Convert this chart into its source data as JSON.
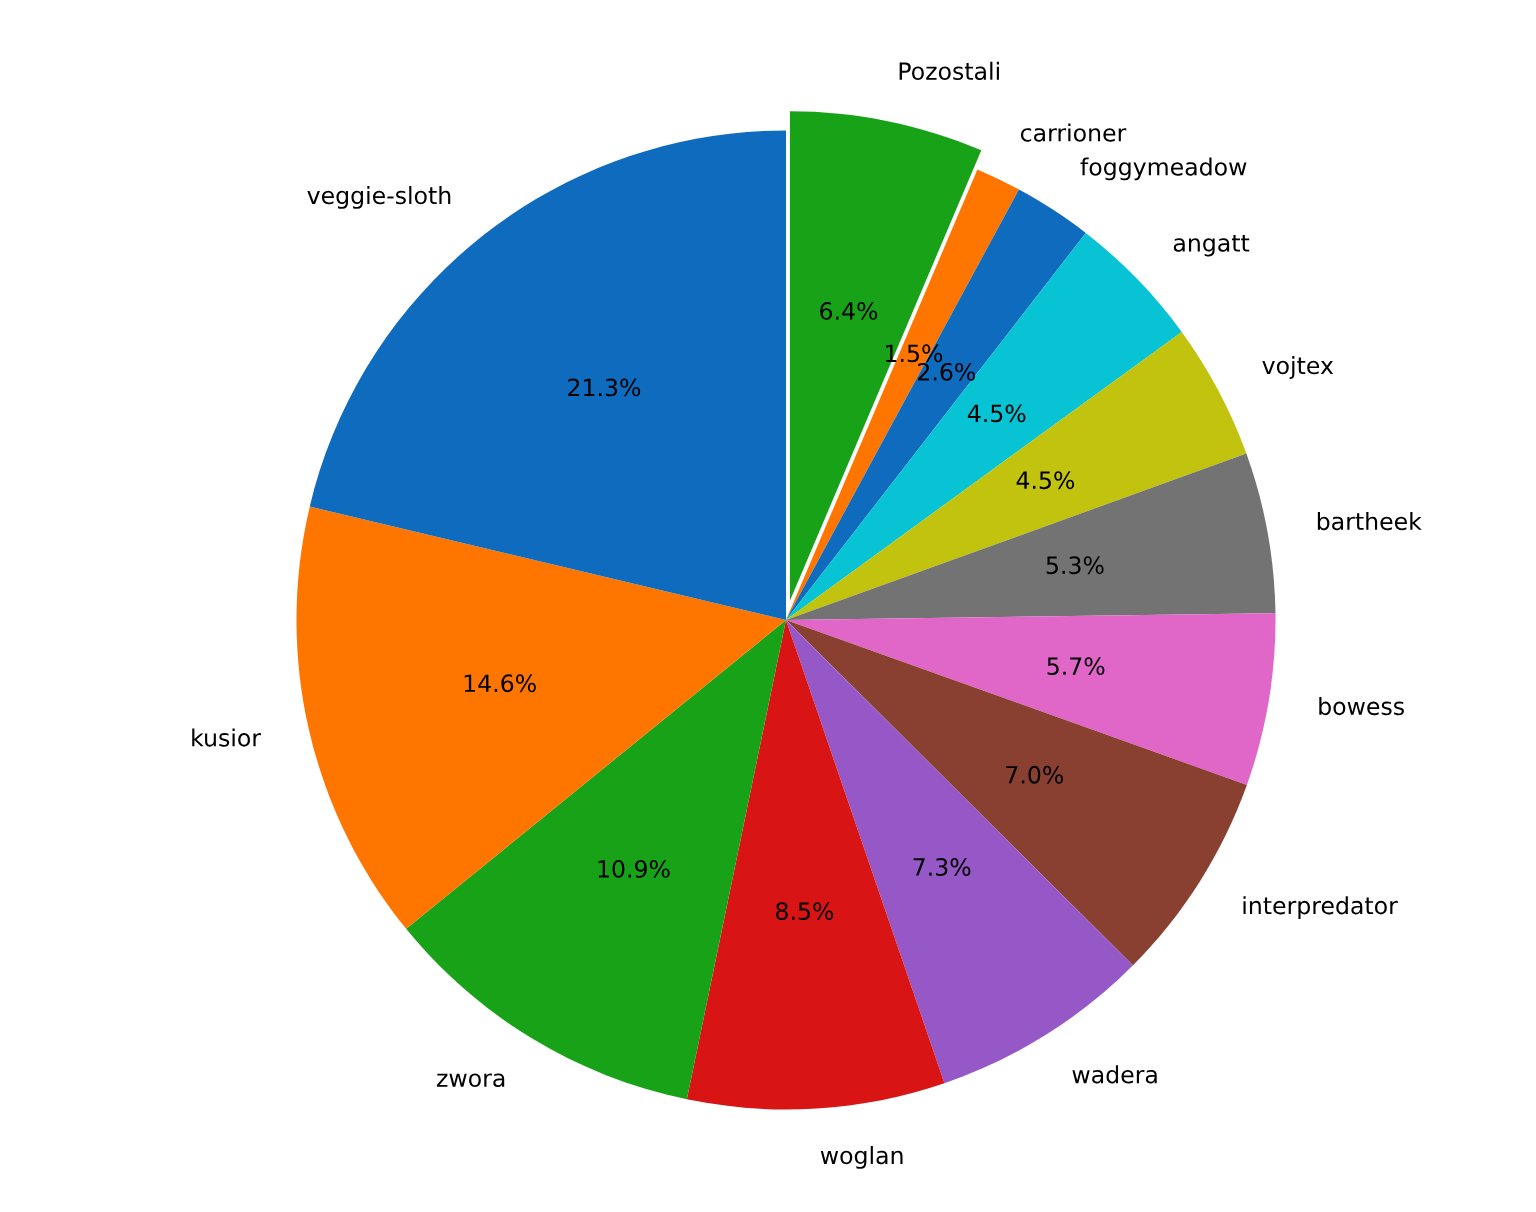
{
  "chart_data": {
    "type": "pie",
    "categories": [
      "Pozostali",
      "carrioner",
      "foggymeadow",
      "angatt",
      "vojtex",
      "bartheek",
      "bowess",
      "interpredator",
      "wadera",
      "woglan",
      "zwora",
      "kusior",
      "veggie-sloth"
    ],
    "values": [
      6.4,
      1.5,
      2.6,
      4.5,
      4.5,
      5.3,
      5.7,
      7.0,
      7.3,
      8.5,
      10.9,
      14.6,
      21.3
    ],
    "colors": [
      "#18a218",
      "#fe7600",
      "#0e6bbd",
      "#07c3d3",
      "#c2c30f",
      "#737373",
      "#e067c8",
      "#8a4030",
      "#9558c6",
      "#d91414",
      "#18a218",
      "#fe7600",
      "#0e6bbd"
    ],
    "value_labels": [
      "6.4%",
      "1.5%",
      "2.6%",
      "4.5%",
      "4.5%",
      "5.3%",
      "5.7%",
      "7.0%",
      "7.3%",
      "8.5%",
      "10.9%",
      "14.6%",
      "21.3%"
    ]
  }
}
